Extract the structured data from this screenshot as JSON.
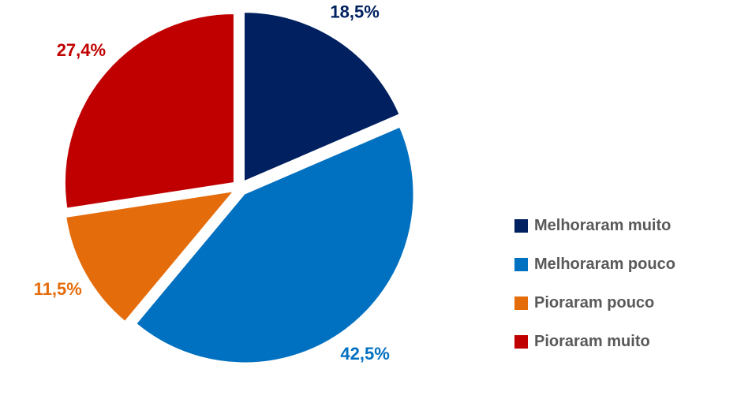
{
  "chart_data": {
    "type": "pie",
    "series": [
      {
        "values": [
          18.5,
          42.5,
          11.5,
          27.4
        ],
        "labels": [
          "18,5%",
          "42,5%",
          "11,5%",
          "27,4%"
        ]
      }
    ],
    "categories": [
      "Melhoraram muito",
      "Melhoraram pouco",
      "Pioraram pouco",
      "Pioraram muito"
    ],
    "colors": [
      "#002060",
      "#0070C0",
      "#E46C0A",
      "#C00000"
    ],
    "title": "",
    "legend": {
      "position": "right",
      "items": [
        "Melhoraram muito",
        "Melhoraram pouco",
        "Pioraram pouco",
        "Pioraram muito"
      ]
    },
    "exploded": true
  }
}
